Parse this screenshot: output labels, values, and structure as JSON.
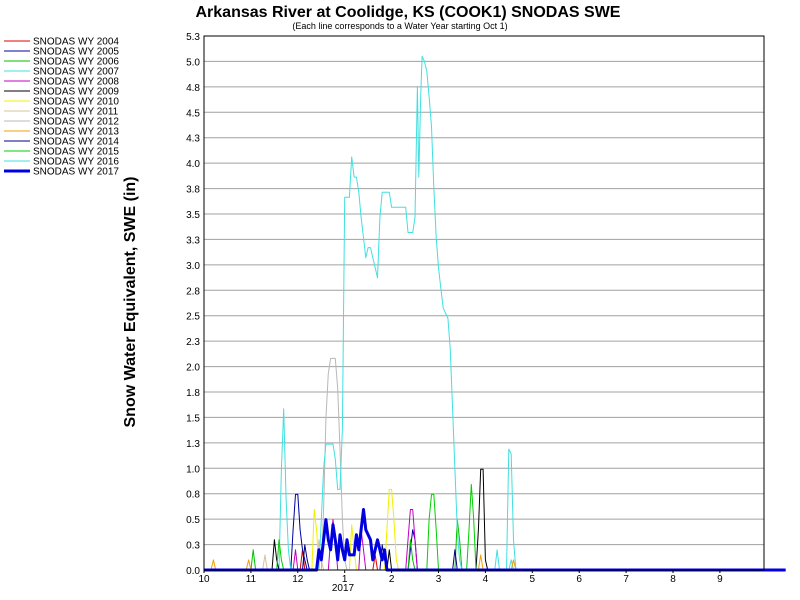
{
  "chart_data": {
    "type": "line",
    "title": "Arkansas River at Coolidge, KS (COOK1) SNODAS SWE",
    "subtitle": "(Each line corresponds to a Water Year starting Oct 1)",
    "ylabel": "Snow Water Equivalent, SWE (in)",
    "xlabel": "",
    "x_sublabel": "2017",
    "ylim": [
      0,
      5.3
    ],
    "xlim": [
      0,
      12.4
    ],
    "grid": true,
    "legend_position": "top-left-outside",
    "y_ticks": [
      "0.0",
      "0.3",
      "0.5",
      "0.8",
      "1.0",
      "1.3",
      "1.5",
      "1.8",
      "2.0",
      "2.3",
      "2.5",
      "2.8",
      "3.0",
      "3.3",
      "3.5",
      "3.8",
      "4.0",
      "4.3",
      "4.5",
      "4.8",
      "5.0",
      "5.3"
    ],
    "x_ticks": [
      {
        "label": "10",
        "x": 0
      },
      {
        "label": "11",
        "x": 1
      },
      {
        "label": "12",
        "x": 2
      },
      {
        "label": "1",
        "x": 3
      },
      {
        "label": "2",
        "x": 4
      },
      {
        "label": "3",
        "x": 5
      },
      {
        "label": "4",
        "x": 6
      },
      {
        "label": "5",
        "x": 7
      },
      {
        "label": "6",
        "x": 8
      },
      {
        "label": "7",
        "x": 9
      },
      {
        "label": "8",
        "x": 10
      },
      {
        "label": "9",
        "x": 11
      }
    ],
    "series": [
      {
        "name": "SNODAS WY 2004",
        "color": "#e00000",
        "width": 1,
        "points": [
          [
            0,
            0
          ],
          [
            2.05,
            0
          ],
          [
            2.1,
            0.2
          ],
          [
            2.15,
            0
          ],
          [
            3.6,
            0
          ],
          [
            3.65,
            0.15
          ],
          [
            3.7,
            0
          ],
          [
            12.4,
            0
          ]
        ]
      },
      {
        "name": "SNODAS WY 2005",
        "color": "#0000a0",
        "width": 1,
        "points": [
          [
            0,
            0
          ],
          [
            1.85,
            0
          ],
          [
            1.9,
            0.4
          ],
          [
            1.95,
            0.75
          ],
          [
            2.0,
            0.75
          ],
          [
            2.05,
            0.4
          ],
          [
            2.1,
            0.2
          ],
          [
            2.15,
            0.1
          ],
          [
            2.2,
            0
          ],
          [
            4.35,
            0
          ],
          [
            4.4,
            0.2
          ],
          [
            4.45,
            0.4
          ],
          [
            4.5,
            0.3
          ],
          [
            4.55,
            0
          ],
          [
            12.4,
            0
          ]
        ]
      },
      {
        "name": "SNODAS WY 2006",
        "color": "#00c000",
        "width": 1,
        "points": [
          [
            0,
            0
          ],
          [
            1.0,
            0
          ],
          [
            1.05,
            0.2
          ],
          [
            1.1,
            0
          ],
          [
            4.35,
            0
          ],
          [
            4.4,
            0.3
          ],
          [
            4.45,
            0.1
          ],
          [
            4.5,
            0
          ],
          [
            5.35,
            0
          ],
          [
            5.4,
            0.5
          ],
          [
            5.45,
            0.3
          ],
          [
            5.5,
            0
          ],
          [
            12.4,
            0
          ]
        ]
      },
      {
        "name": "SNODAS WY 2007",
        "color": "#40e0e0",
        "width": 1,
        "points": [
          [
            0,
            0
          ],
          [
            1.6,
            0
          ],
          [
            1.65,
            1.0
          ],
          [
            1.7,
            1.6
          ],
          [
            1.75,
            0.7
          ],
          [
            1.8,
            0.2
          ],
          [
            1.85,
            0
          ],
          [
            6.5,
            0
          ],
          [
            6.55,
            0.1
          ],
          [
            6.6,
            0
          ],
          [
            12.4,
            0
          ]
        ]
      },
      {
        "name": "SNODAS WY 2008",
        "color": "#c000c0",
        "width": 1,
        "points": [
          [
            0,
            0
          ],
          [
            1.9,
            0
          ],
          [
            1.95,
            0.2
          ],
          [
            2.0,
            0
          ],
          [
            2.65,
            0
          ],
          [
            2.7,
            0.3
          ],
          [
            2.75,
            0.5
          ],
          [
            2.8,
            0.3
          ],
          [
            2.85,
            0
          ],
          [
            3.3,
            0
          ],
          [
            3.35,
            0.4
          ],
          [
            3.4,
            0.2
          ],
          [
            3.45,
            0
          ],
          [
            4.3,
            0
          ],
          [
            4.35,
            0.3
          ],
          [
            4.4,
            0.6
          ],
          [
            4.45,
            0.6
          ],
          [
            4.5,
            0.3
          ],
          [
            4.55,
            0
          ],
          [
            12.4,
            0
          ]
        ]
      },
      {
        "name": "SNODAS WY 2009",
        "color": "#000000",
        "width": 1,
        "points": [
          [
            0,
            0
          ],
          [
            1.45,
            0
          ],
          [
            1.5,
            0.3
          ],
          [
            1.55,
            0.1
          ],
          [
            1.6,
            0
          ],
          [
            3.9,
            0
          ],
          [
            3.95,
            0.2
          ],
          [
            4.0,
            0
          ],
          [
            5.8,
            0
          ],
          [
            5.85,
            0.4
          ],
          [
            5.9,
            1.0
          ],
          [
            5.95,
            1.0
          ],
          [
            6.0,
            0.1
          ],
          [
            6.05,
            0
          ],
          [
            12.4,
            0
          ]
        ]
      },
      {
        "name": "SNODAS WY 2010",
        "color": "#f0f000",
        "width": 1,
        "points": [
          [
            0,
            0
          ],
          [
            2.3,
            0
          ],
          [
            2.35,
            0.6
          ],
          [
            2.4,
            0.4
          ],
          [
            2.45,
            0
          ],
          [
            3.1,
            0
          ],
          [
            3.15,
            0.45
          ],
          [
            3.2,
            0.2
          ],
          [
            3.25,
            0
          ],
          [
            3.85,
            0
          ],
          [
            3.9,
            0.4
          ],
          [
            3.95,
            0.8
          ],
          [
            4.0,
            0.8
          ],
          [
            4.05,
            0.5
          ],
          [
            4.1,
            0.1
          ],
          [
            4.15,
            0
          ],
          [
            12.4,
            0
          ]
        ]
      },
      {
        "name": "SNODAS WY 2011",
        "color": "#d8c0a0",
        "width": 1,
        "points": [
          [
            0,
            0
          ],
          [
            1.25,
            0
          ],
          [
            1.3,
            0.15
          ],
          [
            1.35,
            0
          ],
          [
            2.4,
            0
          ],
          [
            2.45,
            0.3
          ],
          [
            2.5,
            0.1
          ],
          [
            2.55,
            0
          ],
          [
            12.4,
            0
          ]
        ]
      },
      {
        "name": "SNODAS WY 2012",
        "color": "#b8b8b8",
        "width": 1,
        "points": [
          [
            0,
            0
          ],
          [
            2.5,
            0
          ],
          [
            2.55,
            0.6
          ],
          [
            2.6,
            1.5
          ],
          [
            2.65,
            1.95
          ],
          [
            2.7,
            2.1
          ],
          [
            2.8,
            2.1
          ],
          [
            2.85,
            1.8
          ],
          [
            2.9,
            1.2
          ],
          [
            2.95,
            0.5
          ],
          [
            3.0,
            0.1
          ],
          [
            3.05,
            0
          ],
          [
            12.4,
            0
          ]
        ]
      },
      {
        "name": "SNODAS WY 2013",
        "color": "#f0a000",
        "width": 1,
        "points": [
          [
            0,
            0
          ],
          [
            0.15,
            0
          ],
          [
            0.2,
            0.1
          ],
          [
            0.25,
            0
          ],
          [
            0.9,
            0
          ],
          [
            0.95,
            0.1
          ],
          [
            1.0,
            0
          ],
          [
            5.85,
            0
          ],
          [
            5.9,
            0.15
          ],
          [
            5.95,
            0
          ],
          [
            6.55,
            0
          ],
          [
            6.6,
            0.1
          ],
          [
            6.65,
            0
          ],
          [
            12.4,
            0
          ]
        ]
      },
      {
        "name": "SNODAS WY 2014",
        "color": "#000080",
        "width": 1,
        "points": [
          [
            0,
            0
          ],
          [
            2.1,
            0
          ],
          [
            2.15,
            0.25
          ],
          [
            2.2,
            0.1
          ],
          [
            2.25,
            0
          ],
          [
            3.75,
            0
          ],
          [
            3.8,
            0.25
          ],
          [
            3.85,
            0.1
          ],
          [
            3.9,
            0
          ],
          [
            5.3,
            0
          ],
          [
            5.35,
            0.2
          ],
          [
            5.4,
            0
          ],
          [
            12.4,
            0
          ]
        ]
      },
      {
        "name": "SNODAS WY 2015",
        "color": "#00d000",
        "width": 1,
        "points": [
          [
            0,
            0
          ],
          [
            1.55,
            0
          ],
          [
            1.6,
            0.3
          ],
          [
            1.65,
            0.1
          ],
          [
            1.7,
            0
          ],
          [
            4.75,
            0
          ],
          [
            4.8,
            0.5
          ],
          [
            4.85,
            0.75
          ],
          [
            4.9,
            0.75
          ],
          [
            4.95,
            0.4
          ],
          [
            5.0,
            0
          ],
          [
            5.6,
            0
          ],
          [
            5.65,
            0.4
          ],
          [
            5.7,
            0.85
          ],
          [
            5.75,
            0.5
          ],
          [
            5.8,
            0
          ],
          [
            12.4,
            0
          ]
        ]
      },
      {
        "name": "SNODAS WY 2016",
        "color": "#40e0e0",
        "width": 1,
        "points": [
          [
            0,
            0
          ],
          [
            2.45,
            0
          ],
          [
            2.5,
            0.5
          ],
          [
            2.55,
            1.0
          ],
          [
            2.6,
            1.25
          ],
          [
            2.75,
            1.25
          ],
          [
            2.8,
            1.1
          ],
          [
            2.85,
            0.8
          ],
          [
            2.9,
            0.8
          ],
          [
            2.95,
            1.4
          ],
          [
            3.0,
            3.7
          ],
          [
            3.1,
            3.7
          ],
          [
            3.15,
            4.1
          ],
          [
            3.2,
            3.9
          ],
          [
            3.25,
            3.9
          ],
          [
            3.3,
            3.75
          ],
          [
            3.35,
            3.5
          ],
          [
            3.4,
            3.3
          ],
          [
            3.45,
            3.1
          ],
          [
            3.5,
            3.2
          ],
          [
            3.55,
            3.2
          ],
          [
            3.6,
            3.1
          ],
          [
            3.65,
            3.0
          ],
          [
            3.7,
            2.9
          ],
          [
            3.75,
            3.5
          ],
          [
            3.8,
            3.75
          ],
          [
            3.95,
            3.75
          ],
          [
            4.0,
            3.6
          ],
          [
            4.2,
            3.6
          ],
          [
            4.3,
            3.6
          ],
          [
            4.35,
            3.35
          ],
          [
            4.45,
            3.35
          ],
          [
            4.5,
            3.5
          ],
          [
            4.55,
            4.8
          ],
          [
            4.58,
            3.9
          ],
          [
            4.62,
            4.7
          ],
          [
            4.65,
            5.1
          ],
          [
            4.7,
            5.05
          ],
          [
            4.75,
            4.95
          ],
          [
            4.8,
            4.7
          ],
          [
            4.85,
            4.4
          ],
          [
            4.9,
            3.8
          ],
          [
            4.95,
            3.3
          ],
          [
            5.0,
            3.0
          ],
          [
            5.05,
            2.8
          ],
          [
            5.1,
            2.6
          ],
          [
            5.15,
            2.55
          ],
          [
            5.2,
            2.5
          ],
          [
            5.25,
            2.2
          ],
          [
            5.3,
            1.6
          ],
          [
            5.35,
            1.0
          ],
          [
            5.4,
            0.4
          ],
          [
            5.45,
            0.1
          ],
          [
            5.5,
            0
          ],
          [
            6.2,
            0
          ],
          [
            6.25,
            0.2
          ],
          [
            6.3,
            0
          ],
          [
            6.45,
            0
          ],
          [
            6.5,
            1.2
          ],
          [
            6.55,
            1.15
          ],
          [
            6.6,
            0.3
          ],
          [
            6.65,
            0
          ],
          [
            12.4,
            0
          ]
        ]
      },
      {
        "name": "SNODAS WY 2017",
        "color": "#0000e0",
        "width": 3,
        "points": [
          [
            0,
            0
          ],
          [
            2.4,
            0
          ],
          [
            2.45,
            0.2
          ],
          [
            2.5,
            0.1
          ],
          [
            2.55,
            0.3
          ],
          [
            2.6,
            0.5
          ],
          [
            2.65,
            0.3
          ],
          [
            2.7,
            0.2
          ],
          [
            2.75,
            0.45
          ],
          [
            2.8,
            0.3
          ],
          [
            2.85,
            0.1
          ],
          [
            2.9,
            0.35
          ],
          [
            2.95,
            0.2
          ],
          [
            3.0,
            0.1
          ],
          [
            3.05,
            0.3
          ],
          [
            3.1,
            0.15
          ],
          [
            3.2,
            0.15
          ],
          [
            3.25,
            0.35
          ],
          [
            3.3,
            0.2
          ],
          [
            3.35,
            0.4
          ],
          [
            3.4,
            0.6
          ],
          [
            3.45,
            0.4
          ],
          [
            3.5,
            0.35
          ],
          [
            3.55,
            0.3
          ],
          [
            3.6,
            0.1
          ],
          [
            3.7,
            0.3
          ],
          [
            3.75,
            0.2
          ],
          [
            3.8,
            0.1
          ],
          [
            3.85,
            0.2
          ],
          [
            3.9,
            0
          ],
          [
            12.4,
            0
          ]
        ]
      }
    ]
  }
}
